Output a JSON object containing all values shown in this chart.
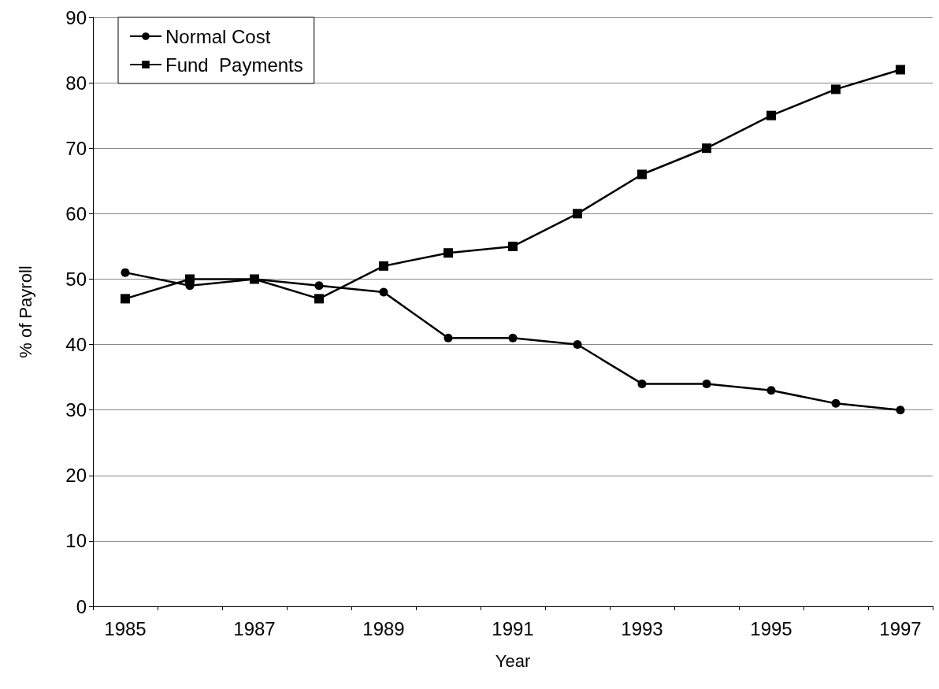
{
  "chart_data": {
    "type": "line",
    "xlabel": "Year",
    "ylabel": "% of Payroll",
    "categories": [
      "1985",
      null,
      "1987",
      null,
      "1989",
      null,
      "1991",
      null,
      "1993",
      null,
      "1995",
      null,
      "1997"
    ],
    "series": [
      {
        "name": "Normal Cost",
        "color": "#000000",
        "marker": "circle",
        "values": [
          51,
          49,
          50,
          49,
          48,
          41,
          41,
          40,
          34,
          34,
          33,
          31,
          30
        ]
      },
      {
        "name": "Fund  Payments",
        "color": "#000000",
        "marker": "square",
        "values": [
          47,
          50,
          50,
          47,
          52,
          54,
          55,
          60,
          66,
          70,
          75,
          79,
          82
        ]
      }
    ],
    "ylim": [
      0,
      90
    ],
    "yticks": [
      0,
      10,
      20,
      30,
      40,
      50,
      60,
      70,
      80,
      90
    ],
    "grid": "y",
    "legend": "top left",
    "line_style": "solid"
  }
}
